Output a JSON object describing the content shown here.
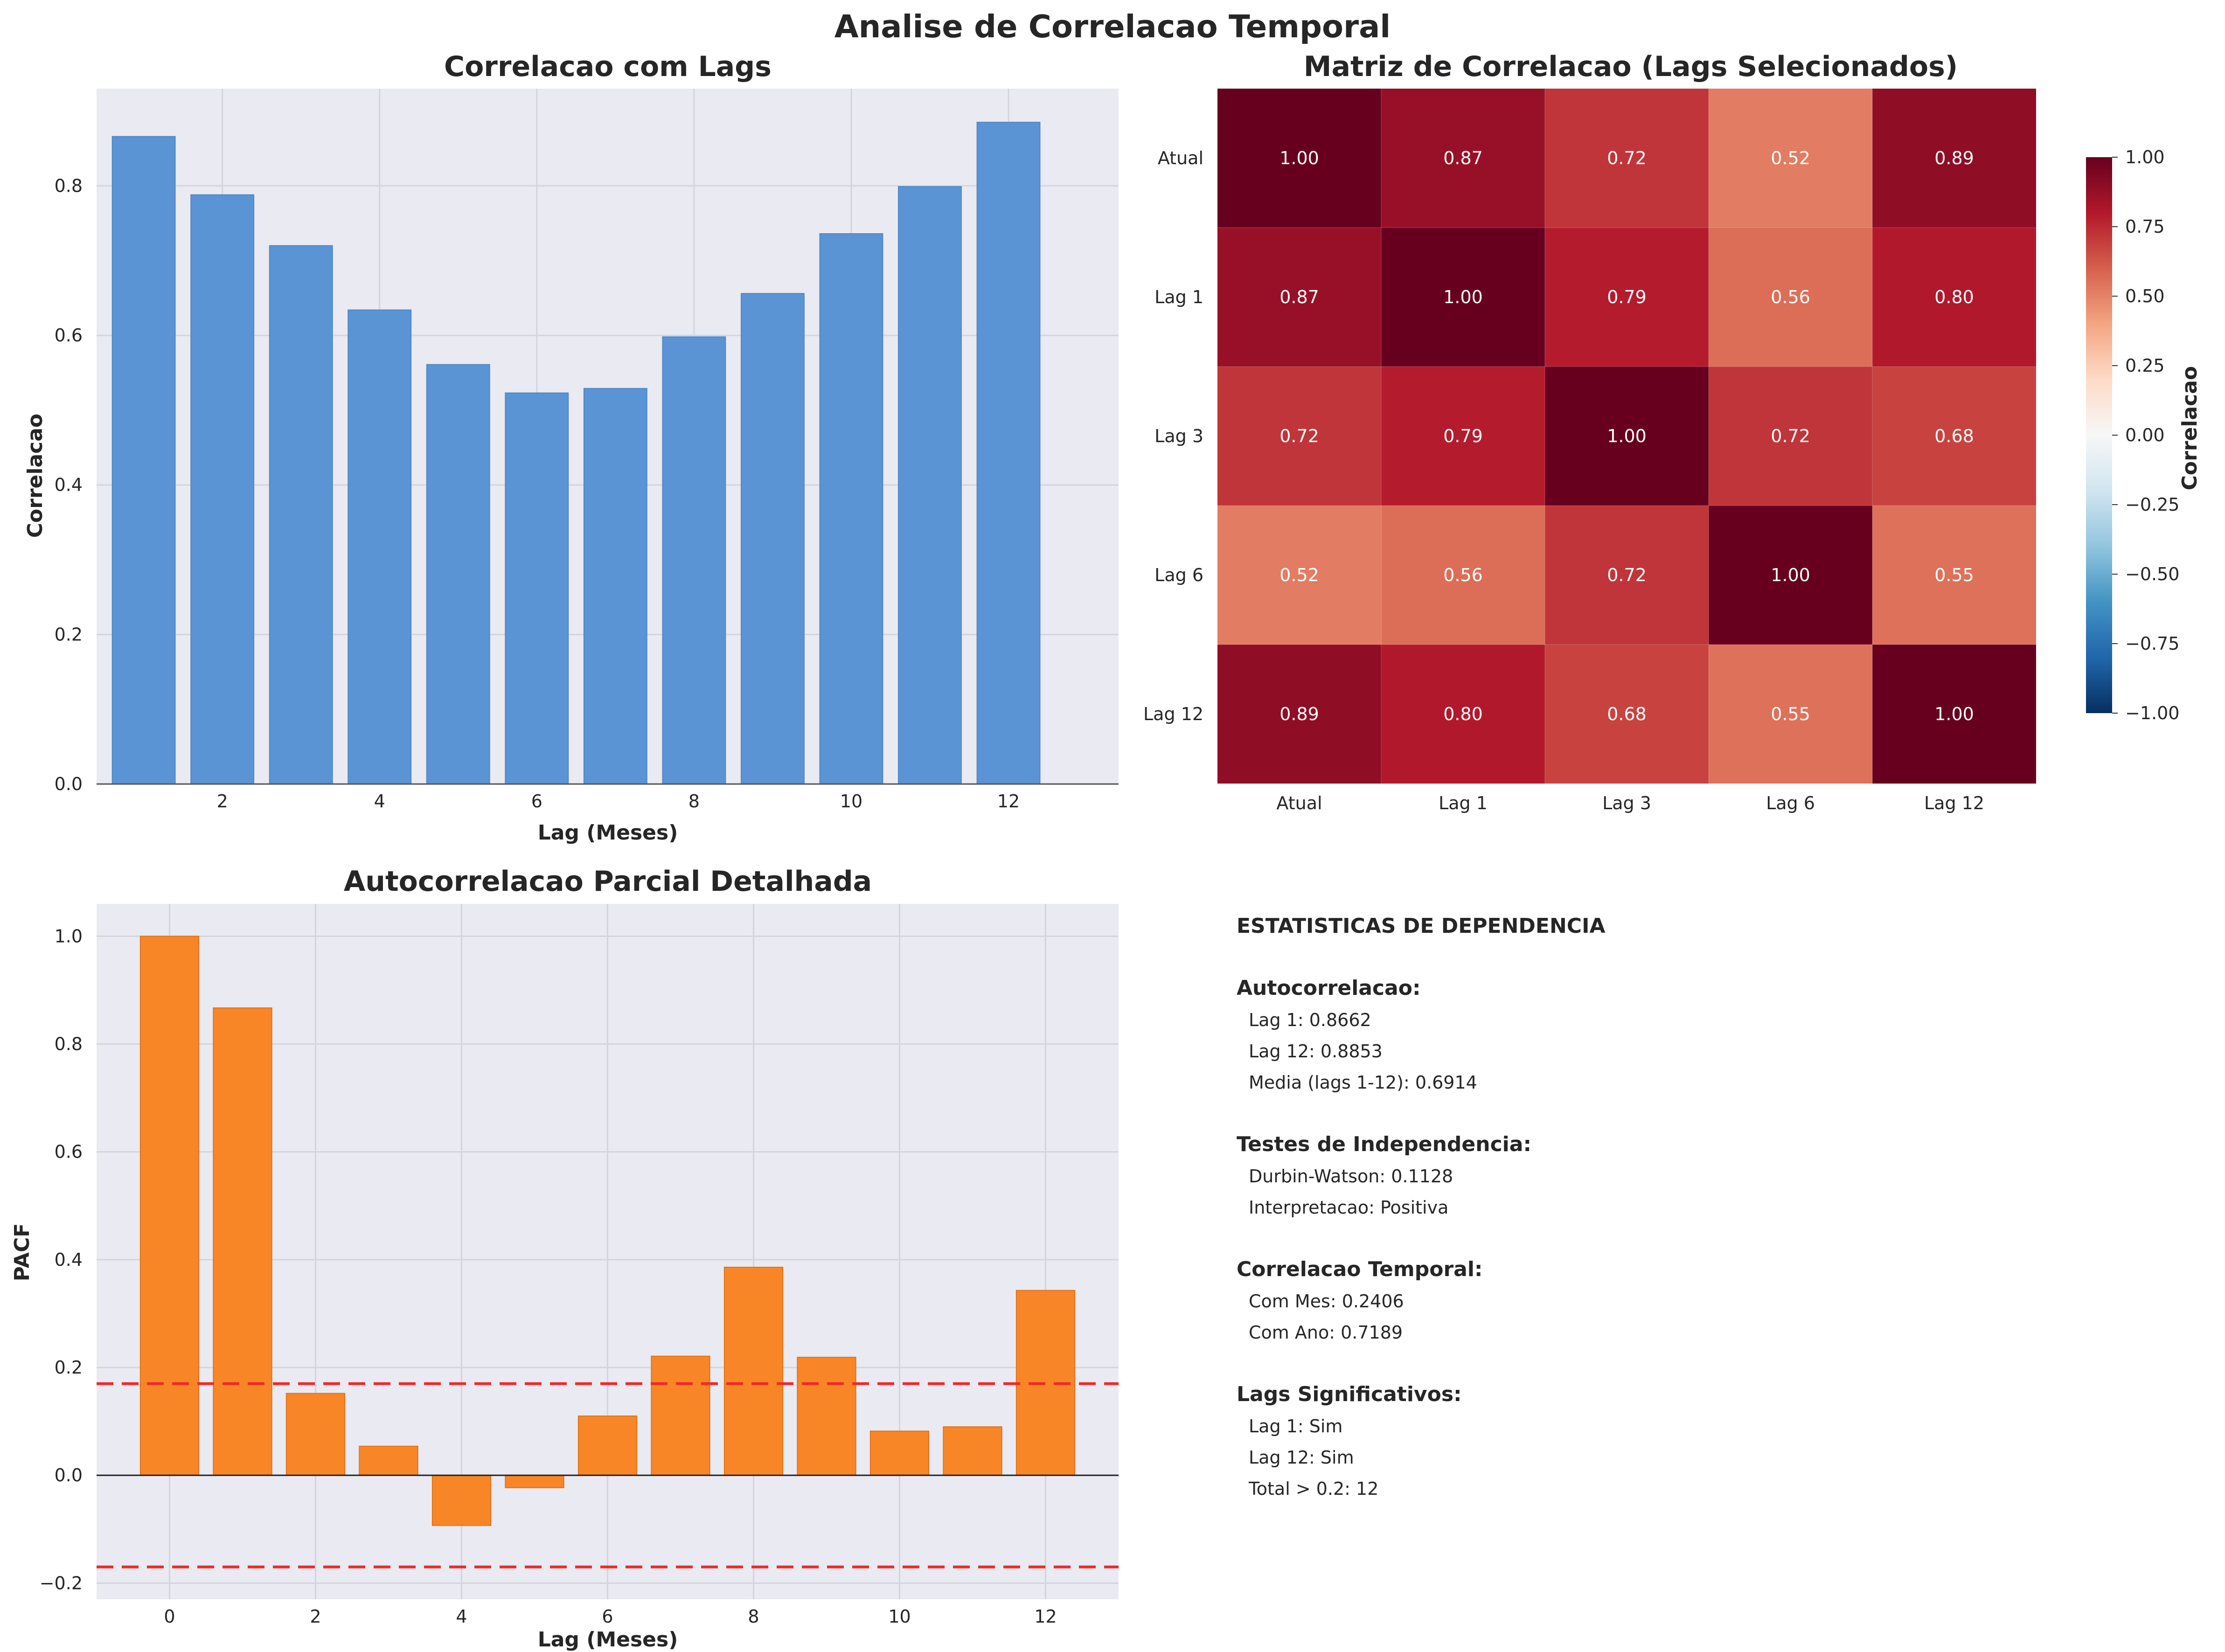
{
  "figure_title": "Analise de Correlacao Temporal",
  "colors": {
    "panel_bg": "#eaeaf2",
    "grid": "#d4d4dc",
    "bar_blue": "#5b94d4",
    "bar_orange": "#f98626",
    "threshold_red": "#ee2a2a"
  },
  "chart_data": [
    {
      "type": "bar",
      "title": "Correlacao com Lags",
      "xlabel": "Lag (Meses)",
      "ylabel": "Correlacao",
      "x": [
        1,
        2,
        3,
        4,
        5,
        6,
        7,
        8,
        9,
        10,
        11,
        12
      ],
      "values": [
        0.866,
        0.788,
        0.72,
        0.634,
        0.561,
        0.523,
        0.529,
        0.598,
        0.656,
        0.736,
        0.799,
        0.885
      ],
      "xlim": [
        0.4,
        13.4
      ],
      "ylim": [
        0,
        0.93
      ],
      "xticks": [
        2,
        4,
        6,
        8,
        10,
        12
      ],
      "yticks": [
        0.0,
        0.2,
        0.4,
        0.6,
        0.8
      ],
      "xtick_labels": [
        "2",
        "4",
        "6",
        "8",
        "10",
        "12"
      ],
      "ytick_labels": [
        "0.0",
        "0.2",
        "0.4",
        "0.6",
        "0.8"
      ],
      "grid": true
    },
    {
      "type": "heatmap",
      "title": "Matriz de Correlacao (Lags Selecionados)",
      "labels": [
        "Atual",
        "Lag 1",
        "Lag 3",
        "Lag 6",
        "Lag 12"
      ],
      "matrix": [
        [
          1.0,
          0.87,
          0.72,
          0.52,
          0.89
        ],
        [
          0.87,
          1.0,
          0.79,
          0.56,
          0.8
        ],
        [
          0.72,
          0.79,
          1.0,
          0.72,
          0.68
        ],
        [
          0.52,
          0.56,
          0.72,
          1.0,
          0.55
        ],
        [
          0.89,
          0.8,
          0.68,
          0.55,
          1.0
        ]
      ],
      "cell_labels": [
        [
          "1.00",
          "0.87",
          "0.72",
          "0.52",
          "0.89"
        ],
        [
          "0.87",
          "1.00",
          "0.79",
          "0.56",
          "0.80"
        ],
        [
          "0.72",
          "0.79",
          "1.00",
          "0.72",
          "0.68"
        ],
        [
          "0.52",
          "0.56",
          "0.72",
          "1.00",
          "0.55"
        ],
        [
          "0.89",
          "0.80",
          "0.68",
          "0.55",
          "1.00"
        ]
      ],
      "colormap": "RdBu_r",
      "vmin": -1,
      "vmax": 1,
      "colorbar_label": "Correlacao",
      "colorbar_ticks": [
        1.0,
        0.75,
        0.5,
        0.25,
        0.0,
        -0.25,
        -0.5,
        -0.75,
        -1.0
      ],
      "colorbar_tick_labels": [
        "1.00",
        "0.75",
        "0.50",
        "0.25",
        "0.00",
        "−0.25",
        "−0.50",
        "−0.75",
        "−1.00"
      ]
    },
    {
      "type": "bar",
      "title": "Autocorrelacao Parcial Detalhada",
      "xlabel": "Lag (Meses)",
      "ylabel": "PACF",
      "x": [
        0,
        1,
        2,
        3,
        4,
        5,
        6,
        7,
        8,
        9,
        10,
        11,
        12
      ],
      "values": [
        1.0,
        0.867,
        0.152,
        0.054,
        -0.093,
        -0.023,
        0.11,
        0.221,
        0.386,
        0.219,
        0.082,
        0.09,
        0.343
      ],
      "xlim": [
        -1,
        13
      ],
      "ylim": [
        -0.23,
        1.06
      ],
      "xticks": [
        0,
        2,
        4,
        6,
        8,
        10,
        12
      ],
      "yticks": [
        -0.2,
        0.0,
        0.2,
        0.4,
        0.6,
        0.8,
        1.0
      ],
      "xtick_labels": [
        "0",
        "2",
        "4",
        "6",
        "8",
        "10",
        "12"
      ],
      "ytick_labels": [
        "−0.2",
        "0.0",
        "0.2",
        "0.4",
        "0.6",
        "0.8",
        "1.0"
      ],
      "confidence_bounds": [
        0.17,
        -0.17
      ],
      "grid": true
    }
  ],
  "stats": {
    "heading": "ESTATISTICAS DE DEPENDENCIA",
    "sections": [
      {
        "title": "Autocorrelacao:",
        "items": [
          "Lag 1: 0.8662",
          "Lag 12: 0.8853",
          "Media (lags 1-12): 0.6914"
        ]
      },
      {
        "title": "Testes de Independencia:",
        "items": [
          "Durbin-Watson: 0.1128",
          "Interpretacao: Positiva"
        ]
      },
      {
        "title": "Correlacao Temporal:",
        "items": [
          "Com Mes: 0.2406",
          "Com Ano: 0.7189"
        ]
      },
      {
        "title": "Lags Significativos:",
        "items": [
          "Lag 1: Sim",
          "Lag 12: Sim",
          "Total > 0.2: 12"
        ]
      }
    ]
  }
}
